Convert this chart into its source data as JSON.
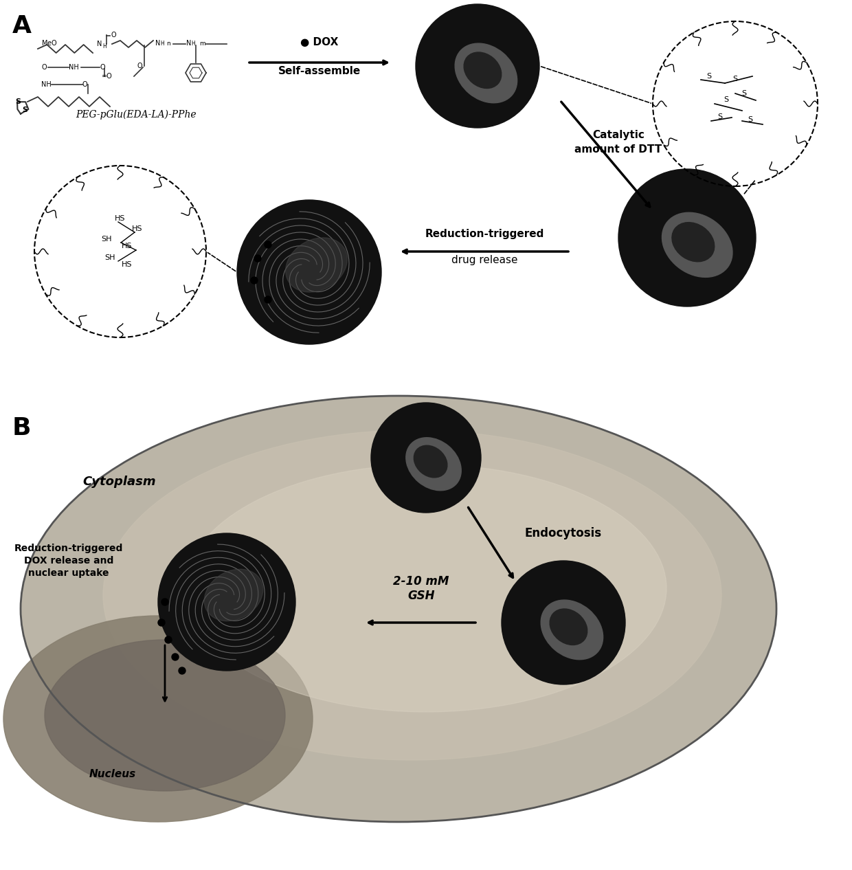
{
  "panel_A_label": "A",
  "panel_B_label": "B",
  "bg_color": "#ffffff",
  "chem_label": "PEG-pGlu(EDA-LA)-PPhe",
  "arrow1_text_line1": "● DOX",
  "arrow1_text_line2": "Self-assemble",
  "arrow2_text_line1": "Catalytic",
  "arrow2_text_line2": "amount of DTT",
  "arrow3_text_line1": "Reduction-triggered",
  "arrow3_text_line2": "drug release",
  "label_cytoplasm": "Cytoplasm",
  "label_nucleus": "Nucleus",
  "label_endocytosis": "Endocytosis",
  "label_gsh": "2-10 mM\nGSH",
  "label_reduction": "Reduction-triggered\nDOX release and\nnuclear uptake",
  "ss_labels": [
    "S",
    "S",
    "S",
    "S",
    "S",
    "S"
  ],
  "hs_labels": [
    "HS",
    "HS",
    "SH",
    "HS",
    "SH",
    "HS"
  ]
}
